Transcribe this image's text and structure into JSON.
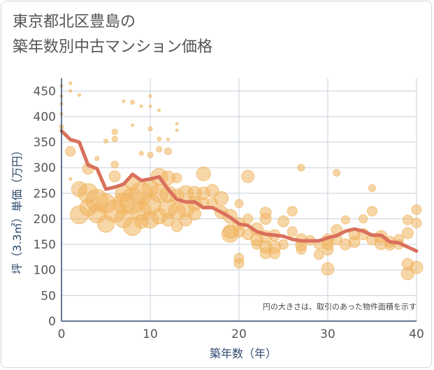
{
  "title_lines": [
    "東京都北区豊島の",
    "築年数別中古マンション価格"
  ],
  "chart_data": {
    "type": "scatter",
    "xlabel": "築年数（年）",
    "ylabel": "坪（3.3㎡）単価（万円）",
    "xlim": [
      0,
      40
    ],
    "ylim": [
      0,
      475
    ],
    "xticks": [
      0,
      10,
      20,
      30,
      40
    ],
    "yticks": [
      0,
      50,
      100,
      150,
      200,
      250,
      300,
      350,
      400,
      450
    ],
    "grid": true,
    "annotation": "円の大きさは、取引のあった物件面積を示す",
    "colors": {
      "bubble": "#f0b45e",
      "line": "#d9705c",
      "grid": "#c7d0dc",
      "axis": "#2e4a6e"
    },
    "average_line": {
      "x": [
        0,
        1,
        2,
        3,
        4,
        5,
        6,
        7,
        8,
        9,
        10,
        11,
        12,
        13,
        14,
        15,
        16,
        17,
        18,
        19,
        20,
        21,
        22,
        23,
        24,
        25,
        26,
        27,
        28,
        29,
        30,
        31,
        32,
        33,
        34,
        35,
        36,
        37,
        38,
        39,
        40
      ],
      "y": [
        372,
        355,
        350,
        305,
        298,
        258,
        262,
        268,
        287,
        275,
        278,
        282,
        258,
        238,
        233,
        233,
        222,
        222,
        213,
        203,
        190,
        187,
        175,
        170,
        168,
        166,
        160,
        157,
        157,
        157,
        163,
        167,
        176,
        180,
        176,
        168,
        168,
        155,
        153,
        145,
        137
      ]
    },
    "bubbles": [
      {
        "x": 0,
        "y": 460,
        "s": 2
      },
      {
        "x": 0,
        "y": 440,
        "s": 2
      },
      {
        "x": 0,
        "y": 425,
        "s": 2
      },
      {
        "x": 0,
        "y": 405,
        "s": 2
      },
      {
        "x": 0,
        "y": 380,
        "s": 3
      },
      {
        "x": 1,
        "y": 465,
        "s": 2
      },
      {
        "x": 1,
        "y": 450,
        "s": 2
      },
      {
        "x": 2,
        "y": 442,
        "s": 2
      },
      {
        "x": 1,
        "y": 332,
        "s": 7
      },
      {
        "x": 1,
        "y": 278,
        "s": 2
      },
      {
        "x": 2,
        "y": 258,
        "s": 11
      },
      {
        "x": 2,
        "y": 208,
        "s": 13
      },
      {
        "x": 3,
        "y": 250,
        "s": 14
      },
      {
        "x": 3,
        "y": 222,
        "s": 12
      },
      {
        "x": 3,
        "y": 298,
        "s": 8
      },
      {
        "x": 4,
        "y": 318,
        "s": 3
      },
      {
        "x": 4,
        "y": 236,
        "s": 16
      },
      {
        "x": 4,
        "y": 210,
        "s": 13
      },
      {
        "x": 5,
        "y": 230,
        "s": 14
      },
      {
        "x": 5,
        "y": 190,
        "s": 12
      },
      {
        "x": 5,
        "y": 352,
        "s": 3
      },
      {
        "x": 6,
        "y": 370,
        "s": 4
      },
      {
        "x": 6,
        "y": 356,
        "s": 4
      },
      {
        "x": 6,
        "y": 306,
        "s": 5
      },
      {
        "x": 6,
        "y": 283,
        "s": 8
      },
      {
        "x": 6,
        "y": 215,
        "s": 16
      },
      {
        "x": 7,
        "y": 430,
        "s": 2
      },
      {
        "x": 7,
        "y": 250,
        "s": 12
      },
      {
        "x": 7,
        "y": 230,
        "s": 15
      },
      {
        "x": 7,
        "y": 200,
        "s": 13
      },
      {
        "x": 8,
        "y": 428,
        "s": 3
      },
      {
        "x": 8,
        "y": 383,
        "s": 2
      },
      {
        "x": 8,
        "y": 270,
        "s": 10
      },
      {
        "x": 8,
        "y": 235,
        "s": 18
      },
      {
        "x": 8,
        "y": 185,
        "s": 13
      },
      {
        "x": 9,
        "y": 420,
        "s": 2
      },
      {
        "x": 9,
        "y": 328,
        "s": 3
      },
      {
        "x": 9,
        "y": 250,
        "s": 16
      },
      {
        "x": 9,
        "y": 215,
        "s": 14
      },
      {
        "x": 9,
        "y": 195,
        "s": 10
      },
      {
        "x": 10,
        "y": 440,
        "s": 2
      },
      {
        "x": 10,
        "y": 420,
        "s": 2
      },
      {
        "x": 10,
        "y": 376,
        "s": 3
      },
      {
        "x": 10,
        "y": 325,
        "s": 4
      },
      {
        "x": 10,
        "y": 260,
        "s": 12
      },
      {
        "x": 10,
        "y": 228,
        "s": 15
      },
      {
        "x": 10,
        "y": 198,
        "s": 12
      },
      {
        "x": 11,
        "y": 412,
        "s": 2
      },
      {
        "x": 11,
        "y": 356,
        "s": 3
      },
      {
        "x": 11,
        "y": 336,
        "s": 4
      },
      {
        "x": 11,
        "y": 282,
        "s": 12
      },
      {
        "x": 11,
        "y": 250,
        "s": 13
      },
      {
        "x": 11,
        "y": 205,
        "s": 11
      },
      {
        "x": 12,
        "y": 355,
        "s": 2
      },
      {
        "x": 12,
        "y": 332,
        "s": 5
      },
      {
        "x": 12,
        "y": 280,
        "s": 10
      },
      {
        "x": 12,
        "y": 248,
        "s": 12
      },
      {
        "x": 12,
        "y": 220,
        "s": 13
      },
      {
        "x": 12,
        "y": 198,
        "s": 9
      },
      {
        "x": 13,
        "y": 386,
        "s": 2
      },
      {
        "x": 13,
        "y": 373,
        "s": 2
      },
      {
        "x": 13,
        "y": 280,
        "s": 7
      },
      {
        "x": 13,
        "y": 245,
        "s": 10
      },
      {
        "x": 13,
        "y": 215,
        "s": 12
      },
      {
        "x": 13,
        "y": 186,
        "s": 8
      },
      {
        "x": 14,
        "y": 250,
        "s": 11
      },
      {
        "x": 14,
        "y": 220,
        "s": 12
      },
      {
        "x": 14,
        "y": 198,
        "s": 9
      },
      {
        "x": 15,
        "y": 250,
        "s": 10
      },
      {
        "x": 15,
        "y": 230,
        "s": 10
      },
      {
        "x": 15,
        "y": 210,
        "s": 9
      },
      {
        "x": 16,
        "y": 288,
        "s": 10
      },
      {
        "x": 16,
        "y": 250,
        "s": 9
      },
      {
        "x": 16,
        "y": 230,
        "s": 8
      },
      {
        "x": 17,
        "y": 255,
        "s": 9
      },
      {
        "x": 17,
        "y": 230,
        "s": 8
      },
      {
        "x": 18,
        "y": 240,
        "s": 10
      },
      {
        "x": 18,
        "y": 213,
        "s": 9
      },
      {
        "x": 19,
        "y": 205,
        "s": 10
      },
      {
        "x": 19,
        "y": 175,
        "s": 10
      },
      {
        "x": 19,
        "y": 170,
        "s": 12
      },
      {
        "x": 20,
        "y": 230,
        "s": 6
      },
      {
        "x": 20,
        "y": 190,
        "s": 9
      },
      {
        "x": 20,
        "y": 175,
        "s": 8
      },
      {
        "x": 20,
        "y": 123,
        "s": 7
      },
      {
        "x": 20,
        "y": 113,
        "s": 7
      },
      {
        "x": 21,
        "y": 283,
        "s": 9
      },
      {
        "x": 21,
        "y": 200,
        "s": 7
      },
      {
        "x": 21,
        "y": 170,
        "s": 8
      },
      {
        "x": 22,
        "y": 180,
        "s": 9
      },
      {
        "x": 22,
        "y": 160,
        "s": 9
      },
      {
        "x": 22,
        "y": 150,
        "s": 7
      },
      {
        "x": 23,
        "y": 212,
        "s": 8
      },
      {
        "x": 23,
        "y": 200,
        "s": 8
      },
      {
        "x": 23,
        "y": 165,
        "s": 9
      },
      {
        "x": 23,
        "y": 145,
        "s": 9
      },
      {
        "x": 23,
        "y": 133,
        "s": 8
      },
      {
        "x": 24,
        "y": 168,
        "s": 8
      },
      {
        "x": 24,
        "y": 145,
        "s": 9
      },
      {
        "x": 24,
        "y": 133,
        "s": 8
      },
      {
        "x": 25,
        "y": 195,
        "s": 8
      },
      {
        "x": 25,
        "y": 150,
        "s": 7
      },
      {
        "x": 26,
        "y": 215,
        "s": 7
      },
      {
        "x": 26,
        "y": 175,
        "s": 7
      },
      {
        "x": 27,
        "y": 300,
        "s": 5
      },
      {
        "x": 27,
        "y": 160,
        "s": 8
      },
      {
        "x": 27,
        "y": 148,
        "s": 8
      },
      {
        "x": 27,
        "y": 140,
        "s": 7
      },
      {
        "x": 28,
        "y": 158,
        "s": 7
      },
      {
        "x": 29,
        "y": 150,
        "s": 7
      },
      {
        "x": 29,
        "y": 130,
        "s": 7
      },
      {
        "x": 30,
        "y": 160,
        "s": 8
      },
      {
        "x": 30,
        "y": 150,
        "s": 8
      },
      {
        "x": 30,
        "y": 140,
        "s": 8
      },
      {
        "x": 30,
        "y": 102,
        "s": 9
      },
      {
        "x": 31,
        "y": 290,
        "s": 5
      },
      {
        "x": 31,
        "y": 178,
        "s": 8
      },
      {
        "x": 31,
        "y": 160,
        "s": 8
      },
      {
        "x": 32,
        "y": 198,
        "s": 6
      },
      {
        "x": 32,
        "y": 150,
        "s": 8
      },
      {
        "x": 33,
        "y": 170,
        "s": 8
      },
      {
        "x": 33,
        "y": 155,
        "s": 8
      },
      {
        "x": 34,
        "y": 200,
        "s": 6
      },
      {
        "x": 34,
        "y": 170,
        "s": 8
      },
      {
        "x": 35,
        "y": 260,
        "s": 5
      },
      {
        "x": 35,
        "y": 215,
        "s": 7
      },
      {
        "x": 35,
        "y": 160,
        "s": 8
      },
      {
        "x": 36,
        "y": 165,
        "s": 9
      },
      {
        "x": 36,
        "y": 152,
        "s": 9
      },
      {
        "x": 37,
        "y": 155,
        "s": 8
      },
      {
        "x": 37,
        "y": 148,
        "s": 7
      },
      {
        "x": 38,
        "y": 160,
        "s": 7
      },
      {
        "x": 38,
        "y": 150,
        "s": 7
      },
      {
        "x": 39,
        "y": 198,
        "s": 7
      },
      {
        "x": 39,
        "y": 172,
        "s": 8
      },
      {
        "x": 39,
        "y": 112,
        "s": 8
      },
      {
        "x": 39,
        "y": 93,
        "s": 9
      },
      {
        "x": 40,
        "y": 218,
        "s": 7
      },
      {
        "x": 40,
        "y": 192,
        "s": 7
      },
      {
        "x": 40,
        "y": 105,
        "s": 9
      }
    ]
  }
}
